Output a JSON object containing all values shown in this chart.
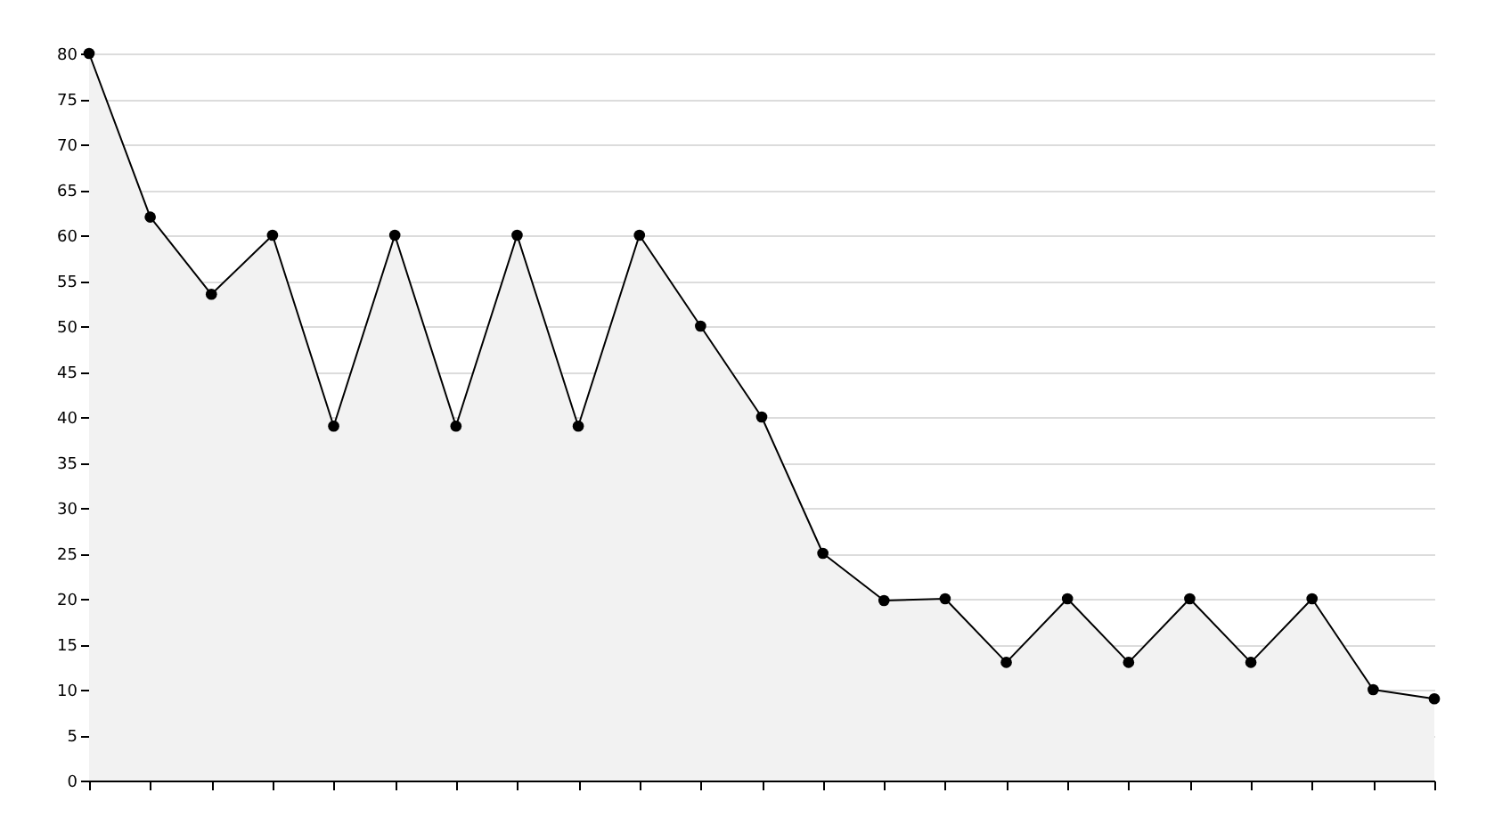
{
  "chart_data": {
    "type": "area",
    "categories": [
      null,
      null,
      null,
      null,
      null,
      null,
      null,
      null,
      null,
      null,
      null,
      null,
      null,
      null,
      null,
      null,
      null,
      null,
      null,
      null,
      null,
      null,
      null
    ],
    "series": [
      {
        "color": "#000000",
        "values": [
          80,
          62,
          53.5,
          60,
          39,
          60,
          39,
          60,
          39,
          60,
          50,
          40,
          25,
          19.8,
          20,
          13,
          20,
          13,
          20,
          13,
          20,
          10,
          9
        ]
      }
    ],
    "ylim": [
      0,
      80
    ],
    "yticks": [
      0,
      5,
      10,
      15,
      20,
      25,
      30,
      35,
      40,
      45,
      50,
      55,
      60,
      65,
      70,
      75,
      80
    ],
    "grid": "y",
    "marker": "circle",
    "tick_labels": "y"
  }
}
